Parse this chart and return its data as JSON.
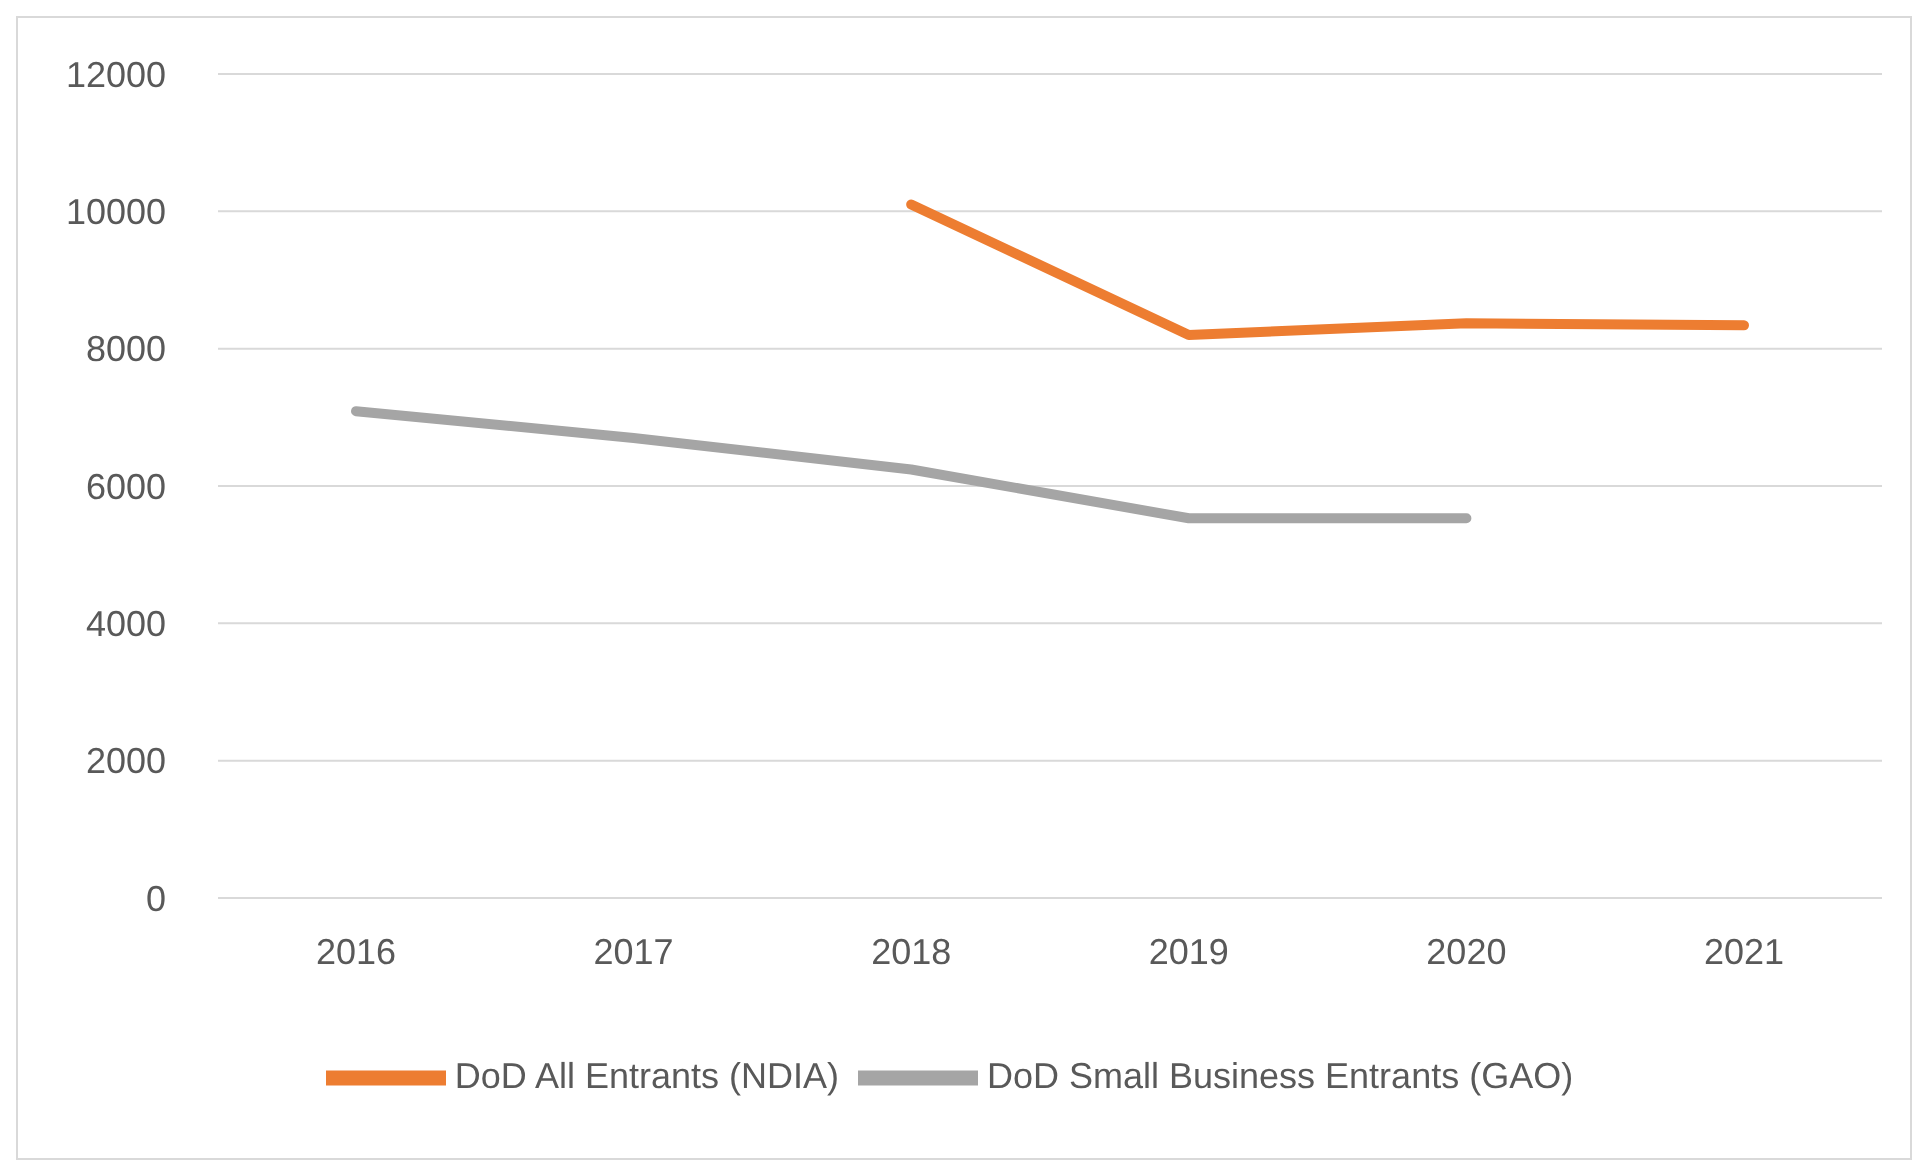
{
  "chart_data": {
    "type": "line",
    "categories": [
      "2016",
      "2017",
      "2018",
      "2019",
      "2020",
      "2021"
    ],
    "series": [
      {
        "name": "DoD All Entrants (NDIA)",
        "color": "#ed7d31",
        "values": [
          null,
          null,
          10100,
          8200,
          8370,
          8340
        ]
      },
      {
        "name": "DoD Small Business Entrants (GAO)",
        "color": "#a5a5a5",
        "values": [
          7090,
          6700,
          6240,
          5530,
          5530,
          null
        ]
      }
    ],
    "ylim": [
      0,
      12000
    ],
    "yticks": [
      0,
      2000,
      4000,
      6000,
      8000,
      10000,
      12000
    ],
    "grid": "y",
    "legend": "bottom",
    "marker": "none",
    "line_style": "solid"
  }
}
